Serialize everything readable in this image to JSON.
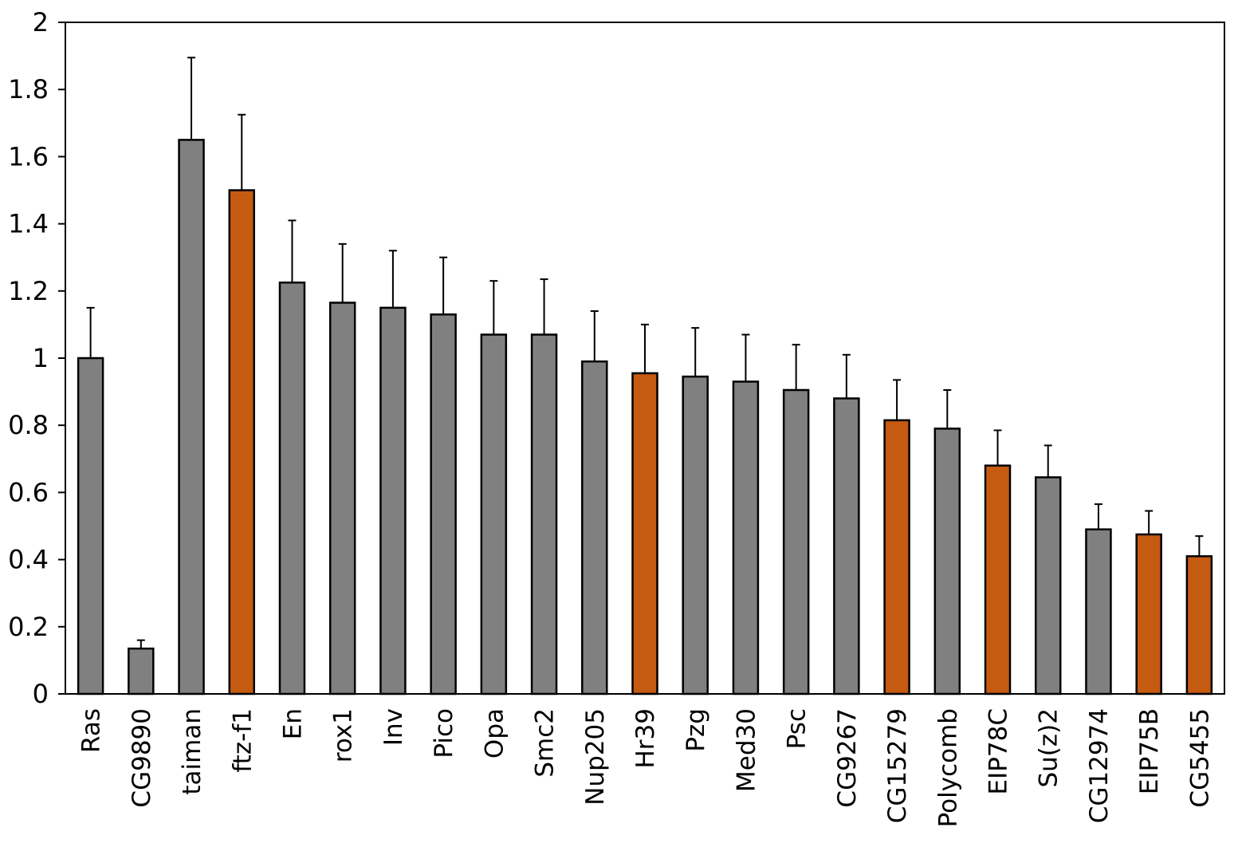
{
  "chart_data": {
    "type": "bar",
    "title": "",
    "xlabel": "",
    "ylabel": "",
    "ylim": [
      0,
      2
    ],
    "yticks": [
      0,
      0.2,
      0.4,
      0.6,
      0.8,
      1,
      1.2,
      1.4,
      1.6,
      1.8,
      2
    ],
    "ytick_labels": [
      "0",
      "0.2",
      "0.4",
      "0.6",
      "0.8",
      "1",
      "1.2",
      "1.4",
      "1.6",
      "1.8",
      "2"
    ],
    "grid": false,
    "legend": "none",
    "colors": {
      "default": "#808080",
      "highlight": "#C55A11"
    },
    "categories": [
      "Ras",
      "CG9890",
      "taiman",
      "ftz-f1",
      "En",
      "rox1",
      "Inv",
      "Pico",
      "Opa",
      "Smc2",
      "Nup205",
      "Hr39",
      "Pzg",
      "Med30",
      "Psc",
      "CG9267",
      "CG15279",
      "Polycomb",
      "EIP78C",
      "Su(z)2",
      "CG12974",
      "EIP75B",
      "CG5455"
    ],
    "values": [
      1.0,
      0.135,
      1.65,
      1.5,
      1.225,
      1.165,
      1.15,
      1.13,
      1.07,
      1.07,
      0.99,
      0.955,
      0.945,
      0.93,
      0.905,
      0.88,
      0.815,
      0.79,
      0.68,
      0.645,
      0.49,
      0.475,
      0.41
    ],
    "errors": [
      0.15,
      0.025,
      0.245,
      0.225,
      0.185,
      0.175,
      0.17,
      0.17,
      0.16,
      0.165,
      0.15,
      0.145,
      0.145,
      0.14,
      0.135,
      0.13,
      0.12,
      0.115,
      0.105,
      0.095,
      0.075,
      0.07,
      0.06
    ],
    "highlighted": [
      false,
      false,
      false,
      true,
      false,
      false,
      false,
      false,
      false,
      false,
      false,
      true,
      false,
      false,
      false,
      false,
      true,
      false,
      true,
      false,
      false,
      true,
      true
    ]
  }
}
